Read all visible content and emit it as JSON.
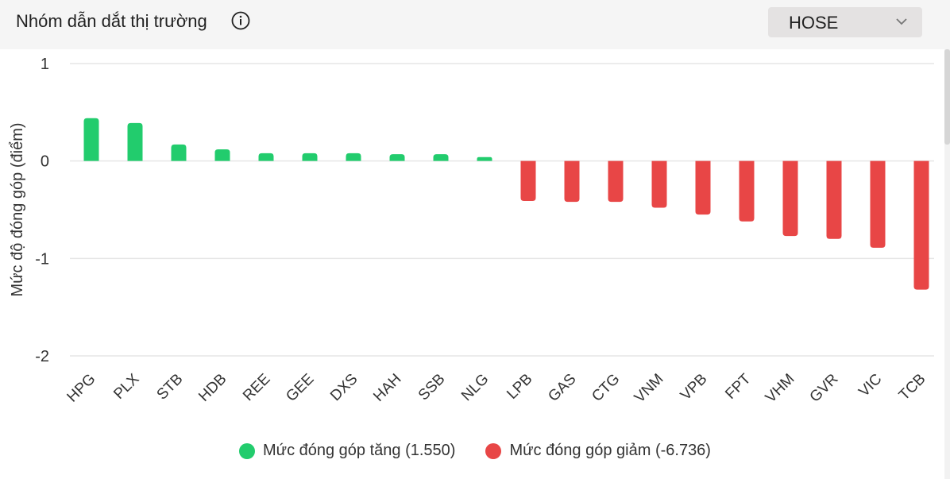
{
  "header": {
    "title": "Nhóm dẫn dắt thị trường",
    "exchange_selected": "HOSE"
  },
  "icons": {
    "info": "info-icon",
    "dropdown": "chevron-down-icon"
  },
  "colors": {
    "positive": "#22cc6d",
    "negative": "#e84646",
    "grid": "#e6e6e6"
  },
  "chart_data": {
    "type": "bar",
    "ylabel": "Mức độ đóng góp (điểm)",
    "ylim": [
      -2,
      1
    ],
    "yticks": [
      1,
      0,
      -1,
      -2
    ],
    "categories": [
      "HPG",
      "PLX",
      "STB",
      "HDB",
      "REE",
      "GEE",
      "DXS",
      "HAH",
      "SSB",
      "NLG",
      "LPB",
      "GAS",
      "CTG",
      "VNM",
      "VPB",
      "FPT",
      "VHM",
      "GVR",
      "VIC",
      "TCB"
    ],
    "values": [
      0.44,
      0.39,
      0.17,
      0.12,
      0.08,
      0.08,
      0.08,
      0.07,
      0.07,
      0.04,
      -0.41,
      -0.42,
      -0.42,
      -0.48,
      -0.55,
      -0.62,
      -0.77,
      -0.8,
      -0.89,
      -1.32
    ],
    "legend": [
      {
        "label": "Mức đóng góp tăng (1.550)",
        "color": "#22cc6d"
      },
      {
        "label": "Mức đóng góp giảm (-6.736)",
        "color": "#e84646"
      }
    ]
  }
}
